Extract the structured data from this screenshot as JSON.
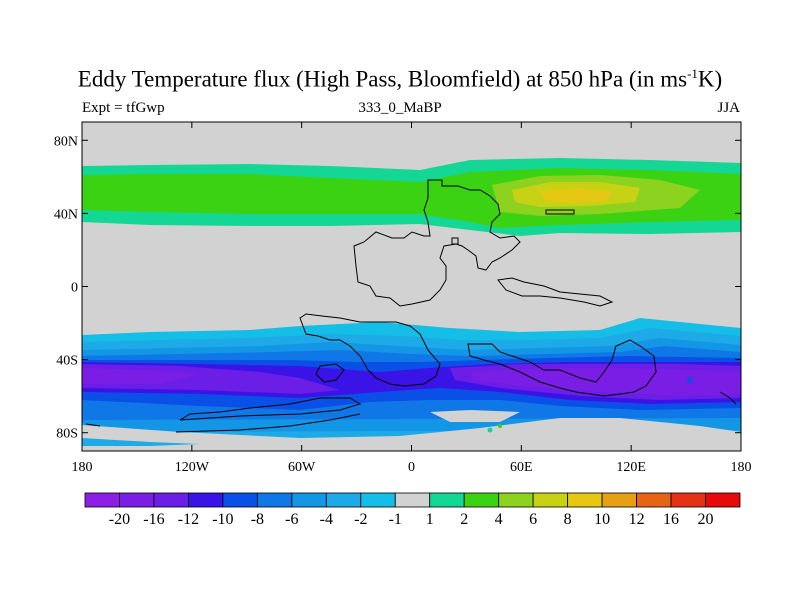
{
  "chart_data": {
    "type": "heatmap",
    "title_main": "Eddy Temperature flux (High Pass, Bloomfield) at 850 hPa (in ms",
    "title_sup": "-1",
    "title_end": "K)",
    "subtitle_left": "Expt = tfGwp",
    "subtitle_center": "333_0_MaBP",
    "subtitle_right": "JJA",
    "x_ticks": [
      {
        "value": -180,
        "label": "180"
      },
      {
        "value": -120,
        "label": "120W"
      },
      {
        "value": -60,
        "label": "60W"
      },
      {
        "value": 0,
        "label": "0"
      },
      {
        "value": 60,
        "label": "60E"
      },
      {
        "value": 120,
        "label": "120E"
      },
      {
        "value": 180,
        "label": "180"
      }
    ],
    "y_ticks": [
      {
        "value": 80,
        "label": "80N"
      },
      {
        "value": 40,
        "label": "40N"
      },
      {
        "value": 0,
        "label": "0"
      },
      {
        "value": -40,
        "label": "40S"
      },
      {
        "value": -80,
        "label": "80S"
      }
    ],
    "xlim": [
      -180,
      180
    ],
    "ylim": [
      -90,
      90
    ],
    "colorbar": {
      "labels": [
        "-20",
        "-16",
        "-12",
        "-10",
        "-8",
        "-6",
        "-4",
        "-2",
        "-1",
        "1",
        "2",
        "4",
        "6",
        "8",
        "10",
        "12",
        "16",
        "20"
      ],
      "colors": [
        "#8c1ee6",
        "#7a1ee6",
        "#6a1ee6",
        "#3a14e6",
        "#0a50e6",
        "#0f78e6",
        "#1496e6",
        "#1eaae6",
        "#14bee6",
        "#d2d2d2",
        "#14d796",
        "#3cd214",
        "#8cd21e",
        "#c8d214",
        "#e6c814",
        "#e6a014",
        "#e66414",
        "#e63214",
        "#e60a0a"
      ]
    },
    "fields": [
      {
        "lat": 50,
        "value": 4
      },
      {
        "lat": 40,
        "value": 8
      },
      {
        "lat": -48,
        "value": -16
      },
      {
        "lat": -65,
        "value": -6
      },
      {
        "lat": 0,
        "value": 0
      }
    ]
  }
}
